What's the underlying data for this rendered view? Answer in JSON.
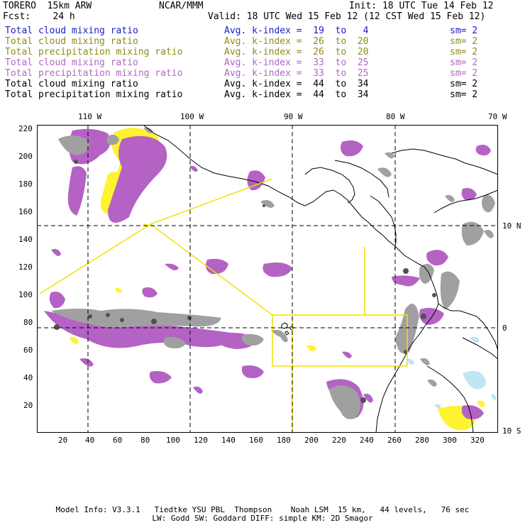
{
  "header": {
    "model": "TORERO  15km ARW",
    "org": "NCAR/MMM",
    "init": "Init: 18 UTC Tue 14 Feb 12",
    "fcst": "Fcst:    24 h",
    "valid": "Valid: 18 UTC Wed 15 Feb 12 (12 CST Wed 15 Feb 12)"
  },
  "legend": [
    {
      "name": "Total cloud mixing ratio",
      "index": "Avg. k-index =  19  to   4",
      "sm": "sm= 2",
      "color": "#1a1acc"
    },
    {
      "name": "Total cloud mixing ratio",
      "index": "Avg. k-index =  26  to  20",
      "sm": "sm= 2",
      "color": "#8c8c1a"
    },
    {
      "name": "Total precipitation mixing ratio",
      "index": "Avg. k-index =  26  to  20",
      "sm": "sm= 2",
      "color": "#8c8c1a"
    },
    {
      "name": "Total cloud mixing ratio",
      "index": "Avg. k-index =  33  to  25",
      "sm": "sm= 2",
      "color": "#b366c8"
    },
    {
      "name": "Total precipitation mixing ratio",
      "index": "Avg. k-index =  33  to  25",
      "sm": "sm= 2",
      "color": "#b366c8"
    },
    {
      "name": "Total cloud mixing ratio",
      "index": "Avg. k-index =  44  to  34",
      "sm": "sm= 2",
      "color": "#000000"
    },
    {
      "name": "Total precipitation mixing ratio",
      "index": "Avg. k-index =  44  to  34",
      "sm": "sm= 2",
      "color": "#000000"
    }
  ],
  "axes": {
    "top": [
      "110 W",
      "100 W",
      "90 W",
      "80 W",
      "70 W"
    ],
    "left": [
      "220",
      "200",
      "180",
      "160",
      "140",
      "120",
      "100",
      "80",
      "60",
      "40",
      "20"
    ],
    "bottom": [
      "20",
      "40",
      "60",
      "80",
      "100",
      "120",
      "140",
      "160",
      "180",
      "200",
      "220",
      "240",
      "260",
      "280",
      "300",
      "320"
    ],
    "right": [
      "10 N",
      "0",
      "10 S"
    ]
  },
  "footer": {
    "line1": "Model Info: V3.3.1   Tiedtke YSU PBL  Thompson    Noah LSM  15 km,   44 levels,   76 sec",
    "line2": "LW: Godd SW: Goddard DIFF: simple KM: 2D Smagor"
  },
  "colors": {
    "cloud_gray": "#a0a0a0",
    "dark_gray": "#505050",
    "purple": "#b462c4",
    "yellow": "#fff230",
    "light_blue": "#bfe6f5",
    "track": "#f2e100"
  }
}
